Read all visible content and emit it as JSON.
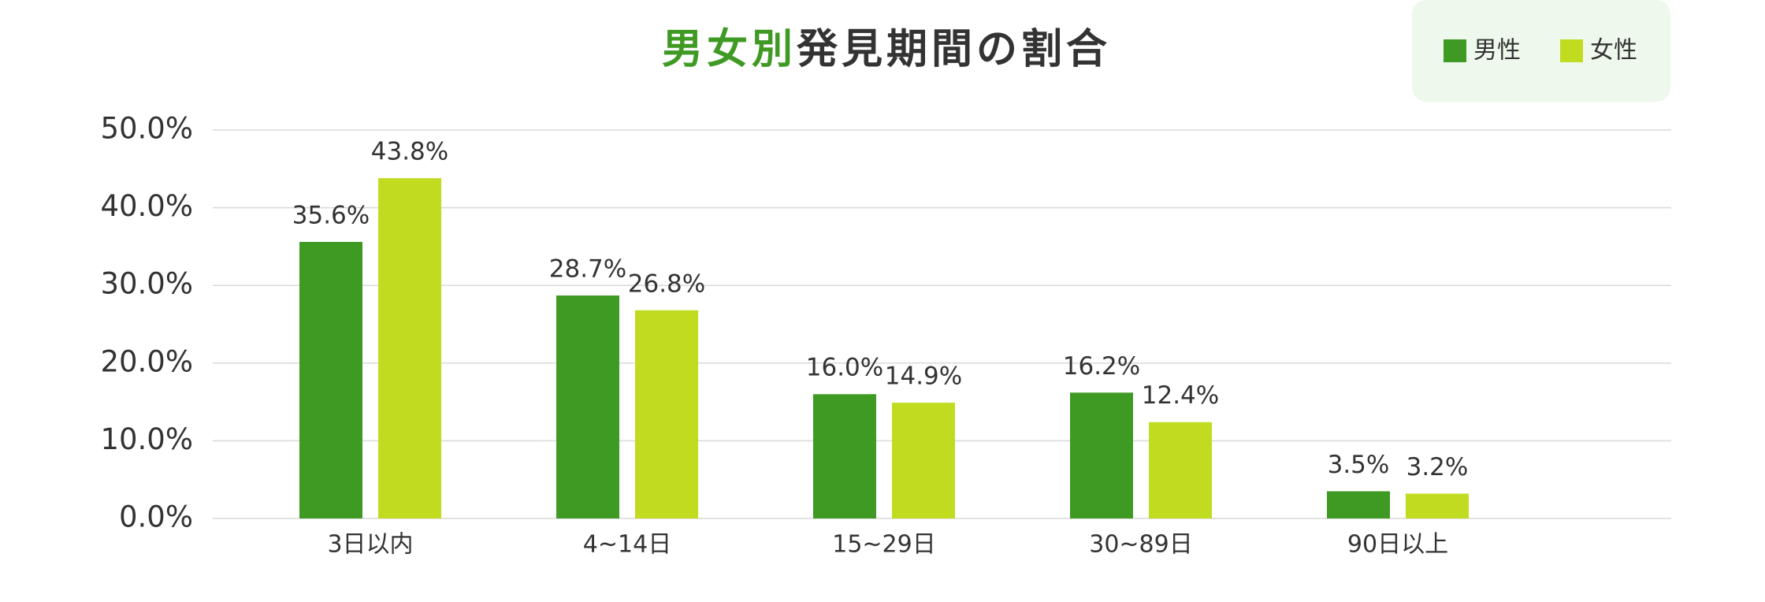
{
  "chart_data": {
    "type": "bar",
    "title": [
      {
        "text": "男女別",
        "color": "#3f9a24"
      },
      {
        "text": "発見期間の割合",
        "color": "#333333"
      }
    ],
    "categories": [
      "3日以内",
      "4~14日",
      "15~29日",
      "30~89日",
      "90日以上"
    ],
    "series": [
      {
        "name": "男性",
        "color": "#3f9a24",
        "values": [
          35.6,
          28.7,
          16.0,
          16.2,
          3.5
        ],
        "value_labels": [
          "35.6%",
          "28.7%",
          "16.0%",
          "16.2%",
          "3.5%"
        ]
      },
      {
        "name": "女性",
        "color": "#c1dc20",
        "values": [
          43.8,
          26.8,
          14.9,
          12.4,
          3.2
        ],
        "value_labels": [
          "43.8%",
          "26.8%",
          "14.9%",
          "12.4%",
          "3.2%"
        ]
      }
    ],
    "ylim": [
      0,
      50
    ],
    "yticks": [
      {
        "value": 0,
        "label": "0.0%"
      },
      {
        "value": 10,
        "label": "10.0%"
      },
      {
        "value": 20,
        "label": "20.0%"
      },
      {
        "value": 30,
        "label": "30.0%"
      },
      {
        "value": 40,
        "label": "40.0%"
      },
      {
        "value": 50,
        "label": "50.0%"
      }
    ],
    "grid": true,
    "legend": "top-right"
  }
}
